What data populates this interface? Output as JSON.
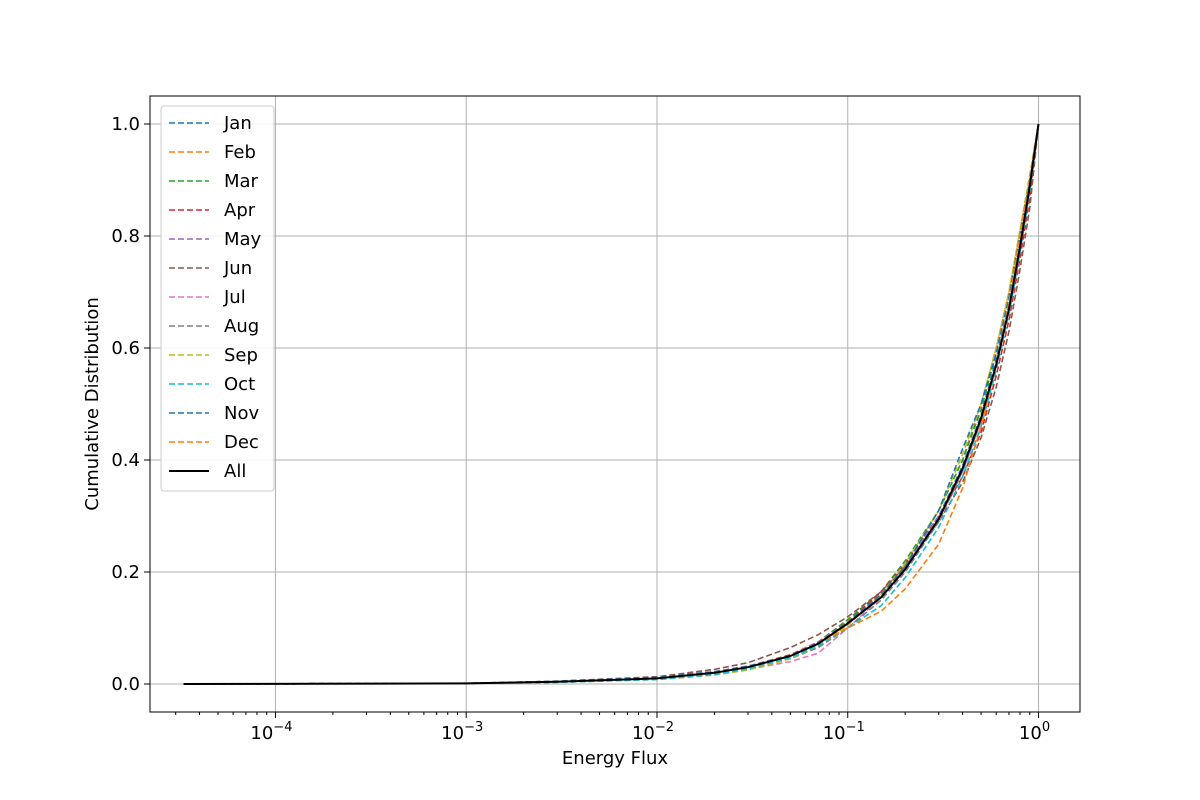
{
  "chart_data": {
    "type": "line",
    "title": "",
    "xlabel": "Energy Flux",
    "ylabel": "Cumulative Distribution",
    "xscale": "log",
    "xlim": [
      2.2e-05,
      1.65
    ],
    "ylim": [
      -0.05,
      1.05
    ],
    "grid": true,
    "legend_position": "top-left",
    "x_tick_labels": [
      {
        "value": 0.0001,
        "base": "10",
        "exp": "−4"
      },
      {
        "value": 0.001,
        "base": "10",
        "exp": "−3"
      },
      {
        "value": 0.01,
        "base": "10",
        "exp": "−2"
      },
      {
        "value": 0.1,
        "base": "10",
        "exp": "−1"
      },
      {
        "value": 1,
        "base": "10",
        "exp": "0"
      }
    ],
    "y_tick_labels": [
      "0.0",
      "0.2",
      "0.4",
      "0.6",
      "0.8",
      "1.0"
    ],
    "y_ticks": [
      0,
      0.2,
      0.4,
      0.6,
      0.8,
      1.0
    ],
    "series": [
      {
        "name": "Jan",
        "color": "#1f77b4",
        "style": "dashed",
        "x": [
          3.3e-05,
          0.001,
          0.003,
          0.01,
          0.02,
          0.03,
          0.05,
          0.07,
          0.1,
          0.15,
          0.2,
          0.3,
          0.4,
          0.5,
          0.6,
          0.7,
          0.8,
          0.9,
          1.0
        ],
        "y": [
          0,
          0.001,
          0.004,
          0.01,
          0.02,
          0.03,
          0.05,
          0.07,
          0.11,
          0.16,
          0.21,
          0.3,
          0.39,
          0.48,
          0.58,
          0.68,
          0.79,
          0.9,
          1.0
        ]
      },
      {
        "name": "Feb",
        "color": "#ff7f0e",
        "style": "dashed",
        "x": [
          3.3e-05,
          0.001,
          0.003,
          0.01,
          0.02,
          0.03,
          0.05,
          0.07,
          0.1,
          0.15,
          0.2,
          0.3,
          0.4,
          0.5,
          0.6,
          0.7,
          0.8,
          0.9,
          1.0
        ],
        "y": [
          0,
          0.001,
          0.004,
          0.012,
          0.022,
          0.032,
          0.052,
          0.075,
          0.112,
          0.165,
          0.215,
          0.31,
          0.4,
          0.5,
          0.6,
          0.7,
          0.81,
          0.9,
          1.0
        ]
      },
      {
        "name": "Mar",
        "color": "#2ca02c",
        "style": "dashed",
        "x": [
          3.3e-05,
          0.001,
          0.003,
          0.01,
          0.02,
          0.03,
          0.05,
          0.07,
          0.1,
          0.15,
          0.2,
          0.3,
          0.4,
          0.5,
          0.6,
          0.7,
          0.8,
          0.9,
          1.0
        ],
        "y": [
          0,
          0.001,
          0.004,
          0.01,
          0.02,
          0.03,
          0.05,
          0.075,
          0.115,
          0.165,
          0.22,
          0.31,
          0.4,
          0.49,
          0.59,
          0.69,
          0.8,
          0.9,
          1.0
        ]
      },
      {
        "name": "Apr",
        "color": "#d62728",
        "style": "dashed",
        "x": [
          3.3e-05,
          0.001,
          0.003,
          0.01,
          0.02,
          0.03,
          0.05,
          0.07,
          0.1,
          0.15,
          0.2,
          0.3,
          0.4,
          0.5,
          0.6,
          0.7,
          0.8,
          0.9,
          1.0
        ],
        "y": [
          0,
          0.001,
          0.004,
          0.011,
          0.021,
          0.031,
          0.052,
          0.075,
          0.11,
          0.165,
          0.215,
          0.3,
          0.37,
          0.45,
          0.55,
          0.65,
          0.76,
          0.87,
          1.0
        ]
      },
      {
        "name": "May",
        "color": "#9467bd",
        "style": "dashed",
        "x": [
          3.3e-05,
          0.001,
          0.003,
          0.01,
          0.02,
          0.03,
          0.05,
          0.07,
          0.1,
          0.15,
          0.2,
          0.3,
          0.4,
          0.5,
          0.6,
          0.7,
          0.8,
          0.9,
          1.0
        ],
        "y": [
          0,
          0.001,
          0.004,
          0.01,
          0.02,
          0.03,
          0.05,
          0.075,
          0.11,
          0.16,
          0.21,
          0.3,
          0.38,
          0.47,
          0.57,
          0.67,
          0.78,
          0.89,
          1.0
        ]
      },
      {
        "name": "Jun",
        "color": "#8c564b",
        "style": "dashed",
        "x": [
          3.3e-05,
          0.001,
          0.003,
          0.01,
          0.02,
          0.03,
          0.05,
          0.07,
          0.1,
          0.15,
          0.2,
          0.3,
          0.4,
          0.5,
          0.6,
          0.7,
          0.8,
          0.9,
          1.0
        ],
        "y": [
          0,
          0.001,
          0.005,
          0.013,
          0.026,
          0.038,
          0.065,
          0.088,
          0.12,
          0.165,
          0.21,
          0.29,
          0.36,
          0.44,
          0.53,
          0.63,
          0.74,
          0.85,
          1.0
        ]
      },
      {
        "name": "Jul",
        "color": "#e377c2",
        "style": "dashed",
        "x": [
          3.3e-05,
          0.001,
          0.003,
          0.01,
          0.02,
          0.03,
          0.05,
          0.07,
          0.1,
          0.15,
          0.2,
          0.3,
          0.4,
          0.5,
          0.6,
          0.7,
          0.8,
          0.9,
          1.0
        ],
        "y": [
          0,
          0.001,
          0.003,
          0.008,
          0.016,
          0.026,
          0.04,
          0.055,
          0.1,
          0.155,
          0.205,
          0.29,
          0.38,
          0.47,
          0.57,
          0.67,
          0.78,
          0.89,
          1.0
        ]
      },
      {
        "name": "Aug",
        "color": "#7f7f7f",
        "style": "dashed",
        "x": [
          3.3e-05,
          0.001,
          0.003,
          0.01,
          0.02,
          0.03,
          0.05,
          0.07,
          0.1,
          0.15,
          0.2,
          0.3,
          0.4,
          0.5,
          0.6,
          0.7,
          0.8,
          0.9,
          1.0
        ],
        "y": [
          0,
          0.001,
          0.003,
          0.009,
          0.018,
          0.028,
          0.045,
          0.065,
          0.1,
          0.15,
          0.2,
          0.29,
          0.38,
          0.47,
          0.57,
          0.67,
          0.78,
          0.89,
          1.0
        ]
      },
      {
        "name": "Sep",
        "color": "#bcbd22",
        "style": "dashed",
        "x": [
          3.3e-05,
          0.001,
          0.003,
          0.01,
          0.02,
          0.03,
          0.05,
          0.07,
          0.1,
          0.15,
          0.2,
          0.3,
          0.4,
          0.5,
          0.6,
          0.7,
          0.8,
          0.9,
          1.0
        ],
        "y": [
          0,
          0.001,
          0.003,
          0.008,
          0.016,
          0.025,
          0.045,
          0.068,
          0.105,
          0.16,
          0.215,
          0.31,
          0.41,
          0.5,
          0.6,
          0.7,
          0.81,
          0.91,
          1.0
        ]
      },
      {
        "name": "Oct",
        "color": "#17becf",
        "style": "dashed",
        "x": [
          3.3e-05,
          0.001,
          0.003,
          0.01,
          0.02,
          0.03,
          0.05,
          0.07,
          0.1,
          0.15,
          0.2,
          0.3,
          0.4,
          0.5,
          0.6,
          0.7,
          0.8,
          0.9,
          1.0
        ],
        "y": [
          0,
          0.001,
          0.003,
          0.008,
          0.017,
          0.027,
          0.047,
          0.068,
          0.1,
          0.14,
          0.19,
          0.28,
          0.37,
          0.46,
          0.56,
          0.66,
          0.77,
          0.88,
          1.0
        ]
      },
      {
        "name": "Nov",
        "color": "#1f77b4",
        "style": "dashed",
        "x": [
          3.3e-05,
          0.001,
          0.003,
          0.01,
          0.02,
          0.03,
          0.05,
          0.07,
          0.1,
          0.15,
          0.2,
          0.3,
          0.4,
          0.5,
          0.6,
          0.7,
          0.8,
          0.9,
          1.0
        ],
        "y": [
          0,
          0.001,
          0.005,
          0.012,
          0.022,
          0.032,
          0.05,
          0.072,
          0.11,
          0.16,
          0.21,
          0.31,
          0.42,
          0.5,
          0.59,
          0.69,
          0.8,
          0.9,
          1.0
        ]
      },
      {
        "name": "Dec",
        "color": "#ff7f0e",
        "style": "dashed",
        "x": [
          3.3e-05,
          0.001,
          0.003,
          0.01,
          0.02,
          0.03,
          0.05,
          0.07,
          0.1,
          0.15,
          0.2,
          0.3,
          0.4,
          0.5,
          0.6,
          0.7,
          0.8,
          0.9,
          1.0
        ],
        "y": [
          0,
          0.001,
          0.004,
          0.01,
          0.02,
          0.03,
          0.05,
          0.072,
          0.1,
          0.13,
          0.17,
          0.25,
          0.35,
          0.46,
          0.57,
          0.68,
          0.8,
          0.9,
          1.0
        ]
      },
      {
        "name": "All",
        "color": "#000000",
        "style": "solid",
        "x": [
          3.3e-05,
          0.001,
          0.003,
          0.01,
          0.02,
          0.03,
          0.05,
          0.07,
          0.1,
          0.15,
          0.2,
          0.3,
          0.4,
          0.5,
          0.6,
          0.7,
          0.8,
          0.9,
          1.0
        ],
        "y": [
          0,
          0.001,
          0.004,
          0.01,
          0.02,
          0.03,
          0.05,
          0.072,
          0.108,
          0.155,
          0.205,
          0.295,
          0.385,
          0.475,
          0.57,
          0.67,
          0.78,
          0.89,
          1.0
        ]
      }
    ]
  }
}
